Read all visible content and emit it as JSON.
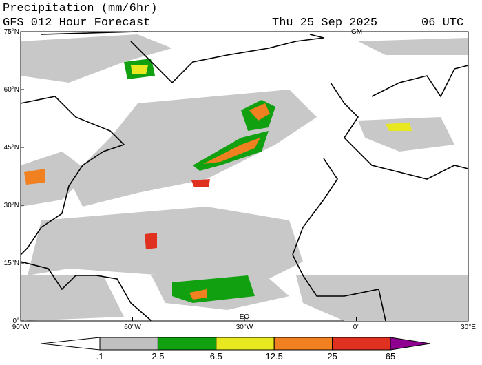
{
  "header": {
    "title": "Precipitation (mm/6hr)",
    "subtitle": "GFS 012 Hour Forecast",
    "date": "Thu 25 Sep 2025",
    "time": "06 UTC"
  },
  "map": {
    "lat_labels": [
      "75°N",
      "60°N",
      "45°N",
      "30°N",
      "15°N",
      "0°"
    ],
    "lon_labels": [
      "90°W",
      "60°W",
      "30°W",
      "0°",
      "30°E"
    ],
    "markers": [
      "GM",
      "EQ"
    ]
  },
  "colorbar": {
    "levels": [
      {
        "value": 0.1,
        "label": ".1"
      },
      2.5,
      6.5,
      12.5,
      25,
      65
    ],
    "colors": [
      "#ffffff",
      "#c0c0c0",
      "#10a010",
      "#e8e820",
      "#f08020",
      "#e03020",
      "#900090"
    ]
  }
}
